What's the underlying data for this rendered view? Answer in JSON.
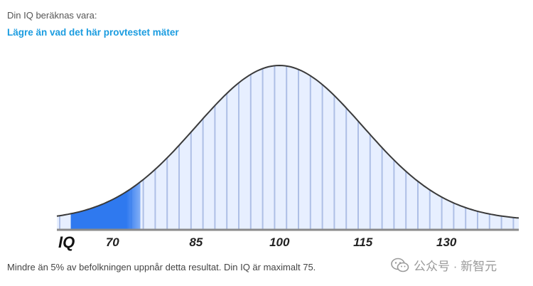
{
  "header": {
    "intro": "Din IQ beräknas vara:",
    "result": "Lägre än vad det här provtestet mäter"
  },
  "chart_data": {
    "type": "area",
    "xlabel": "IQ",
    "ticks": [
      70,
      85,
      100,
      115,
      130
    ],
    "mean": 100,
    "sd": 15,
    "highlight_max": 75,
    "xlim": [
      60,
      143
    ],
    "colors": {
      "curve": "#3a3a3a",
      "fill": "#e7efff",
      "stripe": "#aebfe6",
      "highlight": "#2f79ef"
    }
  },
  "footer": {
    "text": "Mindre än 5% av befolkningen uppnår detta resultat. Din IQ är maximalt 75."
  },
  "watermark": {
    "text": "公众号 · 新智元"
  }
}
